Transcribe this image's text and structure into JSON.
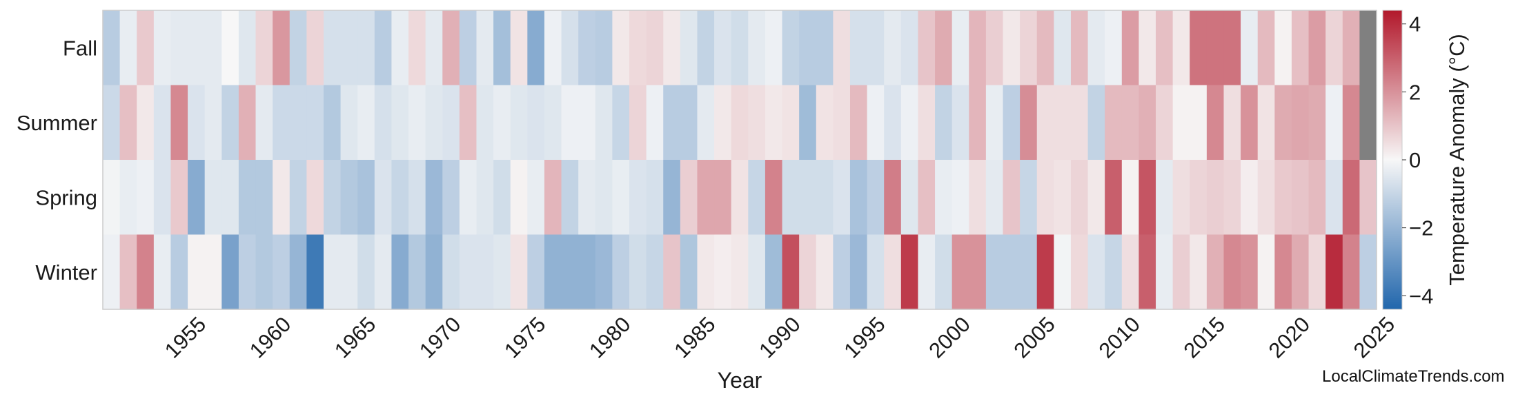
{
  "chart_data": {
    "type": "heatmap",
    "xlabel": "Year",
    "colorbar_label": "Temperature Anomaly (°C)",
    "colorbar_ticks": [
      4,
      2,
      0,
      -2,
      -4
    ],
    "color_range": [
      -4.4,
      4.4
    ],
    "colormap": [
      "#2166ac",
      "#f7f7f7",
      "#b2182b"
    ],
    "missing_color": "#808080",
    "rows": [
      "Fall",
      "Summer",
      "Spring",
      "Winter"
    ],
    "years": [
      1951,
      1952,
      1953,
      1954,
      1955,
      1956,
      1957,
      1958,
      1959,
      1960,
      1961,
      1962,
      1963,
      1964,
      1965,
      1966,
      1967,
      1968,
      1969,
      1970,
      1971,
      1972,
      1973,
      1974,
      1975,
      1976,
      1977,
      1978,
      1979,
      1980,
      1981,
      1982,
      1983,
      1984,
      1985,
      1986,
      1987,
      1988,
      1989,
      1990,
      1991,
      1992,
      1993,
      1994,
      1995,
      1996,
      1997,
      1998,
      1999,
      2000,
      2001,
      2002,
      2003,
      2004,
      2005,
      2006,
      2007,
      2008,
      2009,
      2010,
      2011,
      2012,
      2013,
      2014,
      2015,
      2016,
      2017,
      2018,
      2019,
      2020,
      2021,
      2022,
      2023,
      2024,
      2025
    ],
    "x_ticks": [
      1955,
      1960,
      1965,
      1970,
      1975,
      1980,
      1985,
      1990,
      1995,
      2000,
      2005,
      2010,
      2015,
      2020,
      2025
    ],
    "values": {
      "Fall": [
        -1.3,
        -0.3,
        0.9,
        -0.3,
        -0.4,
        -0.4,
        -0.4,
        0.0,
        -0.5,
        0.7,
        1.9,
        -1.1,
        0.7,
        -0.7,
        -0.7,
        -0.7,
        -1.3,
        -0.3,
        0.6,
        -0.4,
        1.4,
        -1.2,
        -0.4,
        -1.7,
        0.4,
        -2.3,
        -0.2,
        -0.7,
        -1.2,
        -1.3,
        0.3,
        0.6,
        0.7,
        0.3,
        -0.5,
        -1.1,
        -0.6,
        -0.8,
        -0.4,
        -0.2,
        -1.1,
        -1.3,
        -1.3,
        0.5,
        -0.7,
        -0.7,
        -0.4,
        -0.6,
        1.0,
        1.5,
        -0.3,
        1.3,
        0.8,
        0.3,
        0.7,
        1.2,
        -0.5,
        1.2,
        -0.4,
        -0.2,
        1.8,
        0.3,
        1.1,
        0.3,
        2.6,
        2.6,
        2.6,
        -0.3,
        1.2,
        0.1,
        1.1,
        1.8,
        0.7,
        1.4,
        null
      ],
      "Summer": [
        -0.9,
        1.1,
        0.3,
        -0.6,
        2.2,
        -0.6,
        -0.4,
        -1.1,
        1.4,
        -0.4,
        -0.9,
        -0.9,
        -0.9,
        -1.4,
        -0.5,
        -0.3,
        -0.7,
        -0.5,
        -0.3,
        -0.5,
        -0.6,
        1.1,
        -0.5,
        -0.3,
        -0.5,
        -0.6,
        -0.5,
        -0.2,
        -0.2,
        -0.5,
        -1.0,
        0.7,
        -0.2,
        -1.3,
        -1.3,
        -0.4,
        0.3,
        0.6,
        0.5,
        0.3,
        0.4,
        -1.8,
        0.4,
        0.5,
        1.2,
        -0.2,
        -0.6,
        -0.2,
        0.5,
        -1.1,
        -0.6,
        1.3,
        -0.3,
        -1.2,
        2.1,
        0.5,
        0.5,
        0.5,
        -1.1,
        1.2,
        1.2,
        1.4,
        0.7,
        0.1,
        0.1,
        2.2,
        0.5,
        2.0,
        0.4,
        1.5,
        1.6,
        1.5,
        -0.2,
        2.2,
        null
      ],
      "Spring": [
        -0.1,
        -0.3,
        -0.2,
        -0.6,
        0.9,
        -2.3,
        -0.5,
        -0.5,
        -1.4,
        -1.4,
        0.3,
        -1.1,
        0.6,
        -1.1,
        -1.4,
        -1.6,
        -0.6,
        -1.0,
        -0.7,
        -1.9,
        -1.2,
        -0.3,
        -0.5,
        -0.8,
        0.1,
        -0.3,
        1.3,
        -1.1,
        -0.4,
        -0.5,
        -0.3,
        -0.6,
        -0.7,
        -2.0,
        0.8,
        1.6,
        1.6,
        0.4,
        -1.0,
        2.3,
        -0.8,
        -0.8,
        -0.8,
        -0.6,
        -1.6,
        -1.2,
        2.4,
        -0.5,
        1.1,
        -0.3,
        -0.2,
        0.5,
        -0.4,
        1.0,
        -1.0,
        0.5,
        0.4,
        0.7,
        0.3,
        3.0,
        0.1,
        3.2,
        -0.4,
        0.5,
        0.7,
        0.8,
        0.7,
        0.2,
        0.5,
        0.9,
        1.0,
        1.2,
        -0.6,
        2.8,
        1.0
      ],
      "Winter": [
        -0.2,
        1.1,
        2.3,
        -0.3,
        -1.3,
        0.1,
        0.1,
        -2.6,
        -1.2,
        -1.4,
        -1.2,
        -2.0,
        -3.8,
        -0.4,
        -0.4,
        -0.8,
        -0.4,
        -2.3,
        -1.4,
        -2.1,
        -0.8,
        -0.6,
        -0.6,
        -0.5,
        0.4,
        -1.2,
        -2.1,
        -2.1,
        -2.1,
        -1.9,
        -1.2,
        -0.8,
        -1.0,
        1.0,
        -1.5,
        0.3,
        0.2,
        0.3,
        -0.5,
        -1.8,
        3.3,
        0.7,
        0.3,
        -1.2,
        -1.9,
        -0.7,
        0.5,
        3.7,
        -0.3,
        -0.8,
        2.0,
        2.0,
        -1.3,
        -1.3,
        -1.3,
        3.7,
        -0.1,
        0.6,
        -0.6,
        -1.0,
        0.5,
        3.0,
        -0.3,
        0.8,
        0.3,
        1.4,
        2.2,
        2.0,
        0.1,
        2.2,
        1.5,
        0.6,
        4.0,
        2.3,
        -1.2
      ]
    }
  },
  "watermark": "LocalClimateTrends.com"
}
